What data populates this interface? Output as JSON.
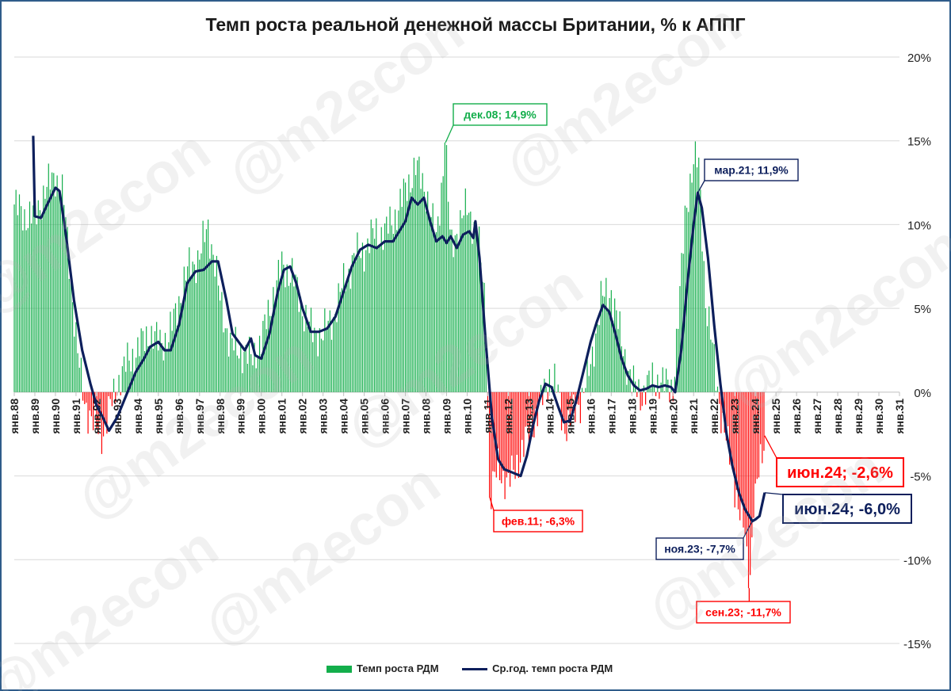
{
  "chart_data": {
    "type": "bar+line",
    "title": "Темп роста реальной денежной массы Британии, % к АППГ",
    "watermark": "@m2econ",
    "y_axis": {
      "min": -15,
      "max": 20,
      "step": 5,
      "format": "percent",
      "tick_labels": [
        "20%",
        "15%",
        "10%",
        "5%",
        "0%",
        "-5%",
        "-10%",
        "-15%"
      ],
      "position": "right"
    },
    "x_axis": {
      "tick_labels": [
        "янв.88",
        "янв.89",
        "янв.90",
        "янв.91",
        "янв.92",
        "янв.93",
        "янв.94",
        "янв.95",
        "янв.96",
        "янв.97",
        "янв.98",
        "янв.99",
        "янв.00",
        "янв.01",
        "янв.02",
        "янв.03",
        "янв.04",
        "янв.05",
        "янв.06",
        "янв.07",
        "янв.08",
        "янв.09",
        "янв.10",
        "янв.11",
        "янв.12",
        "янв.13",
        "янв.14",
        "янв.15",
        "янв.16",
        "янв.17",
        "янв.18",
        "янв.19",
        "янв.20",
        "янв.21",
        "янв.22",
        "янв.23",
        "янв.24",
        "янв.25",
        "янв.26",
        "янв.27",
        "янв.28",
        "янв.29",
        "янв.30",
        "янв.31"
      ]
    },
    "colors": {
      "positive_bar": "#13ae4b",
      "negative_bar": "#ff0000",
      "avg_line": "#0d1f5c",
      "grid": "#d9d9d9"
    },
    "series": [
      {
        "name": "Темп роста РДМ",
        "kind": "bar",
        "note": "monthly values, anchor points (year fraction, % y/y) interpolated monthly",
        "anchors": [
          [
            1988.0,
            11.2
          ],
          [
            1988.5,
            10.5
          ],
          [
            1989.0,
            10.5
          ],
          [
            1989.5,
            12.0
          ],
          [
            1990.0,
            13.0
          ],
          [
            1990.4,
            11.5
          ],
          [
            1990.8,
            6.0
          ],
          [
            1991.1,
            2.0
          ],
          [
            1991.4,
            -0.5
          ],
          [
            1991.8,
            -1.8
          ],
          [
            1992.0,
            -2.2
          ],
          [
            1992.3,
            -2.5
          ],
          [
            1992.6,
            -1.2
          ],
          [
            1993.0,
            0.5
          ],
          [
            1993.5,
            1.8
          ],
          [
            1994.0,
            2.5
          ],
          [
            1994.5,
            3.5
          ],
          [
            1995.0,
            3.0
          ],
          [
            1995.5,
            3.2
          ],
          [
            1996.0,
            5.5
          ],
          [
            1996.5,
            7.5
          ],
          [
            1997.0,
            8.0
          ],
          [
            1997.4,
            10.0
          ],
          [
            1997.7,
            8.0
          ],
          [
            1998.0,
            5.5
          ],
          [
            1998.5,
            2.8
          ],
          [
            1999.0,
            2.5
          ],
          [
            1999.5,
            2.0
          ],
          [
            2000.0,
            3.0
          ],
          [
            2000.5,
            5.5
          ],
          [
            2001.0,
            7.5
          ],
          [
            2001.5,
            7.0
          ],
          [
            2002.0,
            5.0
          ],
          [
            2002.5,
            3.5
          ],
          [
            2003.0,
            3.5
          ],
          [
            2003.5,
            4.5
          ],
          [
            2004.0,
            6.5
          ],
          [
            2004.5,
            8.0
          ],
          [
            2005.0,
            8.5
          ],
          [
            2005.5,
            9.5
          ],
          [
            2006.0,
            9.5
          ],
          [
            2006.5,
            10.5
          ],
          [
            2007.0,
            12.0
          ],
          [
            2007.5,
            13.5
          ],
          [
            2008.0,
            12.0
          ],
          [
            2008.5,
            9.0
          ],
          [
            2008.95,
            14.9
          ],
          [
            2009.2,
            8.5
          ],
          [
            2009.6,
            10.0
          ],
          [
            2010.0,
            11.0
          ],
          [
            2010.5,
            9.5
          ],
          [
            2010.9,
            5.0
          ],
          [
            2011.1,
            -6.3
          ],
          [
            2011.5,
            -4.5
          ],
          [
            2012.0,
            -5.5
          ],
          [
            2012.5,
            -4.0
          ],
          [
            2013.0,
            -2.5
          ],
          [
            2013.5,
            -1.0
          ],
          [
            2014.0,
            1.0
          ],
          [
            2014.3,
            0.5
          ],
          [
            2014.7,
            -2.0
          ],
          [
            2015.0,
            -1.8
          ],
          [
            2015.5,
            -0.5
          ],
          [
            2016.0,
            1.5
          ],
          [
            2016.5,
            5.5
          ],
          [
            2017.0,
            6.0
          ],
          [
            2017.5,
            3.0
          ],
          [
            2018.0,
            0.5
          ],
          [
            2018.5,
            -0.2
          ],
          [
            2019.0,
            0.8
          ],
          [
            2019.5,
            0.5
          ],
          [
            2020.0,
            0.3
          ],
          [
            2020.3,
            5.0
          ],
          [
            2020.6,
            11.0
          ],
          [
            2021.0,
            13.5
          ],
          [
            2021.25,
            14.0
          ],
          [
            2021.6,
            5.0
          ],
          [
            2022.0,
            2.0
          ],
          [
            2022.4,
            -2.0
          ],
          [
            2022.8,
            -4.0
          ],
          [
            2023.2,
            -7.0
          ],
          [
            2023.5,
            -8.5
          ],
          [
            2023.7,
            -11.7
          ],
          [
            2023.9,
            -7.5
          ],
          [
            2024.2,
            -4.5
          ],
          [
            2024.45,
            -2.6
          ]
        ]
      },
      {
        "name": "Ср.год. темп роста РДМ",
        "kind": "line",
        "points": [
          [
            1988.92,
            15.3
          ],
          [
            1989.0,
            10.5
          ],
          [
            1989.3,
            10.4
          ],
          [
            1989.6,
            11.2
          ],
          [
            1990.0,
            12.2
          ],
          [
            1990.2,
            12.0
          ],
          [
            1990.5,
            9.5
          ],
          [
            1990.9,
            5.5
          ],
          [
            1991.3,
            2.5
          ],
          [
            1991.7,
            0.5
          ],
          [
            1992.0,
            -0.8
          ],
          [
            1992.3,
            -1.5
          ],
          [
            1992.6,
            -2.3
          ],
          [
            1993.0,
            -1.5
          ],
          [
            1993.5,
            0.0
          ],
          [
            1993.9,
            1.2
          ],
          [
            1994.3,
            2.0
          ],
          [
            1994.6,
            2.7
          ],
          [
            1995.0,
            3.0
          ],
          [
            1995.3,
            2.5
          ],
          [
            1995.6,
            2.5
          ],
          [
            1996.0,
            4.0
          ],
          [
            1996.4,
            6.5
          ],
          [
            1996.8,
            7.2
          ],
          [
            1997.2,
            7.3
          ],
          [
            1997.6,
            7.8
          ],
          [
            1997.9,
            7.8
          ],
          [
            1998.3,
            5.5
          ],
          [
            1998.6,
            3.5
          ],
          [
            1998.9,
            3.0
          ],
          [
            1999.2,
            2.5
          ],
          [
            1999.5,
            3.2
          ],
          [
            1999.7,
            2.2
          ],
          [
            2000.0,
            2.0
          ],
          [
            2000.4,
            3.5
          ],
          [
            2000.8,
            6.0
          ],
          [
            2001.1,
            7.3
          ],
          [
            2001.4,
            7.5
          ],
          [
            2001.7,
            6.5
          ],
          [
            2002.0,
            5.0
          ],
          [
            2002.4,
            3.6
          ],
          [
            2002.8,
            3.6
          ],
          [
            2003.2,
            3.8
          ],
          [
            2003.6,
            4.5
          ],
          [
            2004.0,
            6.0
          ],
          [
            2004.4,
            7.5
          ],
          [
            2004.8,
            8.5
          ],
          [
            2005.2,
            8.8
          ],
          [
            2005.6,
            8.6
          ],
          [
            2006.0,
            9.0
          ],
          [
            2006.4,
            9.0
          ],
          [
            2006.8,
            9.8
          ],
          [
            2007.0,
            10.2
          ],
          [
            2007.3,
            11.6
          ],
          [
            2007.6,
            11.2
          ],
          [
            2007.9,
            11.6
          ],
          [
            2008.2,
            10.2
          ],
          [
            2008.5,
            9.0
          ],
          [
            2008.8,
            9.3
          ],
          [
            2009.0,
            8.9
          ],
          [
            2009.2,
            9.3
          ],
          [
            2009.5,
            8.6
          ],
          [
            2009.8,
            9.4
          ],
          [
            2010.1,
            9.6
          ],
          [
            2010.3,
            9.2
          ],
          [
            2010.4,
            10.2
          ],
          [
            2010.6,
            8.0
          ],
          [
            2010.9,
            3.0
          ],
          [
            2011.2,
            -1.5
          ],
          [
            2011.5,
            -4.0
          ],
          [
            2011.8,
            -4.6
          ],
          [
            2012.2,
            -4.8
          ],
          [
            2012.6,
            -5.0
          ],
          [
            2012.9,
            -3.8
          ],
          [
            2013.2,
            -2.0
          ],
          [
            2013.5,
            -0.5
          ],
          [
            2013.8,
            0.5
          ],
          [
            2014.1,
            0.3
          ],
          [
            2014.4,
            -0.8
          ],
          [
            2014.7,
            -1.8
          ],
          [
            2015.0,
            -1.7
          ],
          [
            2015.3,
            -0.5
          ],
          [
            2015.7,
            1.5
          ],
          [
            2016.0,
            3.0
          ],
          [
            2016.3,
            4.2
          ],
          [
            2016.6,
            5.2
          ],
          [
            2016.9,
            4.8
          ],
          [
            2017.2,
            3.5
          ],
          [
            2017.5,
            2.0
          ],
          [
            2017.8,
            1.0
          ],
          [
            2018.1,
            0.4
          ],
          [
            2018.4,
            0.1
          ],
          [
            2018.7,
            0.2
          ],
          [
            2019.0,
            0.4
          ],
          [
            2019.3,
            0.3
          ],
          [
            2019.6,
            0.4
          ],
          [
            2019.9,
            0.3
          ],
          [
            2020.1,
            0.0
          ],
          [
            2020.4,
            2.5
          ],
          [
            2020.7,
            6.5
          ],
          [
            2021.0,
            10.0
          ],
          [
            2021.2,
            11.9
          ],
          [
            2021.4,
            11.0
          ],
          [
            2021.7,
            8.0
          ],
          [
            2022.0,
            4.0
          ],
          [
            2022.3,
            0.5
          ],
          [
            2022.6,
            -2.5
          ],
          [
            2022.9,
            -4.5
          ],
          [
            2023.2,
            -6.0
          ],
          [
            2023.5,
            -7.0
          ],
          [
            2023.85,
            -7.7
          ],
          [
            2024.0,
            -7.6
          ],
          [
            2024.2,
            -7.4
          ],
          [
            2024.45,
            -6.0
          ]
        ]
      }
    ],
    "annotations": [
      {
        "text": "дек.08; 14,9%",
        "color": "#13ae4b",
        "x": 2008.95,
        "y": 14.9
      },
      {
        "text": "мар.21; 11,9%",
        "color": "#0d1f5c",
        "x": 2021.2,
        "y": 11.9
      },
      {
        "text": "фев.11; -6,3%",
        "color": "#ff0000",
        "x": 2011.1,
        "y": -6.3
      },
      {
        "text": "ноя.23; -7,7%",
        "color": "#0d1f5c",
        "x": 2023.85,
        "y": -7.7
      },
      {
        "text": "сен.23; -11,7%",
        "color": "#ff0000",
        "x": 2023.7,
        "y": -11.7
      },
      {
        "text": "июн.24; -2,6%",
        "color": "#ff0000",
        "x": 2024.45,
        "y": -2.6,
        "large": true
      },
      {
        "text": "июн.24; -6,0%",
        "color": "#0d1f5c",
        "x": 2024.45,
        "y": -6.0,
        "large": true
      }
    ],
    "legend": [
      {
        "label": "Темп роста РДМ",
        "symbol": "bar",
        "color": "#13ae4b"
      },
      {
        "label": "Ср.год. темп роста РДМ",
        "symbol": "line",
        "color": "#0d1f5c"
      }
    ]
  }
}
